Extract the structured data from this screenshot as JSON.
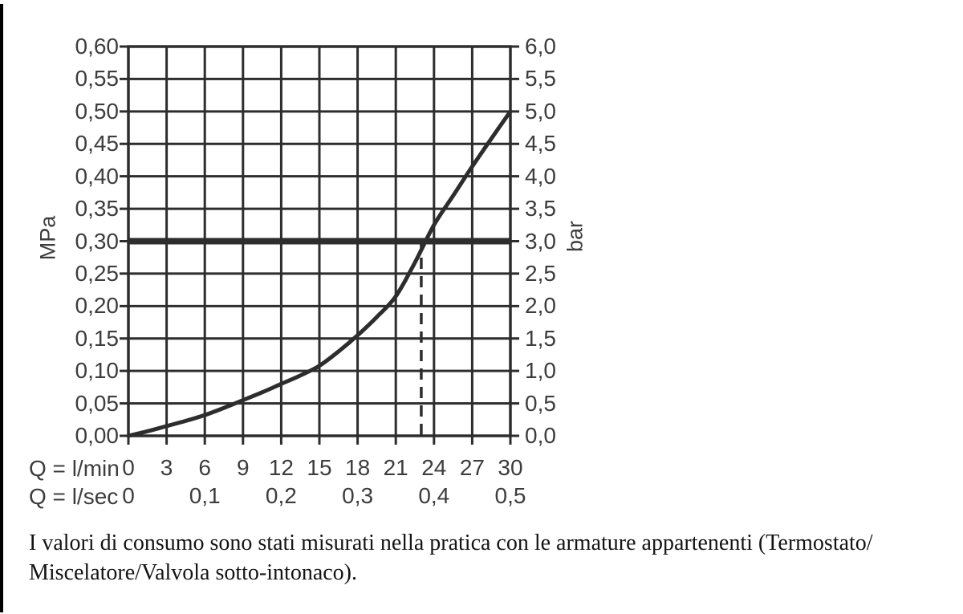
{
  "page": {
    "background": "#ffffff",
    "edge_line_color": "#000000"
  },
  "chart_data": {
    "type": "line",
    "title": "",
    "grid": true,
    "line_color": "#2d2d2d",
    "label_color": "#3d3d3d",
    "x_axis": {
      "row1_label": "Q = l/min",
      "row1_ticks": [
        "0",
        "3",
        "6",
        "9",
        "12",
        "15",
        "18",
        "21",
        "24",
        "27",
        "30"
      ],
      "row2_label": "Q = l/sec",
      "row2_ticks": [
        [
          0,
          "0"
        ],
        [
          6,
          "0,1"
        ],
        [
          12,
          "0,2"
        ],
        [
          18,
          "0,3"
        ],
        [
          24,
          "0,4"
        ],
        [
          30,
          "0,5"
        ]
      ],
      "range_l_min": [
        0,
        30
      ]
    },
    "y_left": {
      "unit": "MPa",
      "ticks": [
        "0,60",
        "0,55",
        "0,50",
        "0,45",
        "0,40",
        "0,35",
        "0,30",
        "0,25",
        "0,20",
        "0,15",
        "0,10",
        "0,05",
        "0,00"
      ],
      "range_mpa": [
        0,
        0.6
      ]
    },
    "y_right": {
      "unit": "bar",
      "ticks": [
        "6,0",
        "5,5",
        "5,0",
        "4,5",
        "4,0",
        "3,5",
        "3,0",
        "2,5",
        "2,0",
        "1,5",
        "1,0",
        "0,5",
        "0,0"
      ],
      "range_bar": [
        0,
        6
      ]
    },
    "series": [
      {
        "name": "flow-pressure-curve",
        "points_l_min_mpa": [
          [
            0,
            0.0
          ],
          [
            1.5,
            0.007
          ],
          [
            3,
            0.015
          ],
          [
            4.5,
            0.023
          ],
          [
            6,
            0.032
          ],
          [
            7.5,
            0.043
          ],
          [
            9,
            0.055
          ],
          [
            10.5,
            0.067
          ],
          [
            12,
            0.08
          ],
          [
            13.5,
            0.093
          ],
          [
            15,
            0.108
          ],
          [
            16.5,
            0.13
          ],
          [
            18,
            0.155
          ],
          [
            19.5,
            0.183
          ],
          [
            21,
            0.215
          ],
          [
            22.5,
            0.267
          ],
          [
            24,
            0.325
          ],
          [
            25.5,
            0.37
          ],
          [
            27,
            0.415
          ],
          [
            28.5,
            0.458
          ],
          [
            30,
            0.5
          ]
        ]
      }
    ],
    "reference_line_mpa": 0.3,
    "reference_line_bar": 3.0,
    "dashed_line_l_min": 23
  },
  "caption": {
    "line1": "I valori di consumo sono stati misurati nella pratica con le armature appartenenti (Termostato/",
    "line2": "Miscelatore/Valvola sotto-intonaco)."
  }
}
